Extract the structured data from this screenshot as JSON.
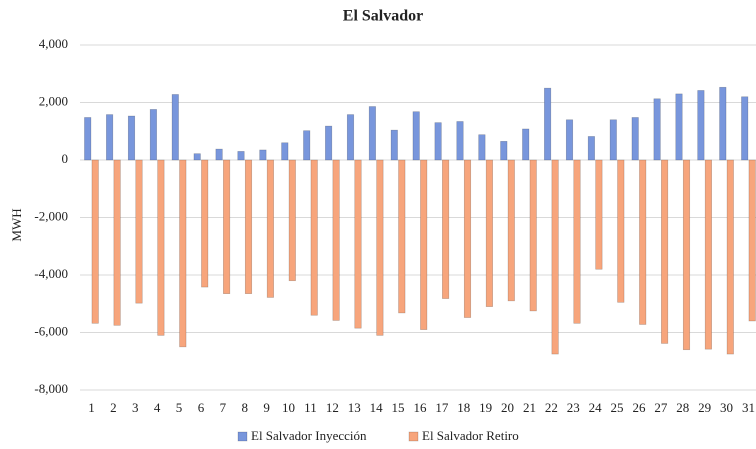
{
  "chart_data": {
    "type": "bar",
    "title": "El Salvador",
    "y_label": "MWH",
    "categories": [
      "1",
      "2",
      "3",
      "4",
      "5",
      "6",
      "7",
      "8",
      "9",
      "10",
      "11",
      "12",
      "13",
      "14",
      "15",
      "16",
      "17",
      "18",
      "19",
      "20",
      "21",
      "22",
      "23",
      "24",
      "25",
      "26",
      "27",
      "28",
      "29",
      "30",
      "31"
    ],
    "series": [
      {
        "name": "El Salvador Inyección",
        "color": "#7896dc",
        "values": [
          1480,
          1580,
          1530,
          1760,
          2280,
          220,
          380,
          300,
          350,
          600,
          1020,
          1180,
          1580,
          1860,
          1040,
          1680,
          1300,
          1340,
          880,
          650,
          1080,
          2500,
          1400,
          820,
          1400,
          1480,
          2130,
          2300,
          2420,
          2530,
          2200
        ]
      },
      {
        "name": "El Salvador Retiro",
        "color": "#f7a57c",
        "values": [
          -5680,
          -5750,
          -4980,
          -6100,
          -6500,
          -4420,
          -4650,
          -4650,
          -4780,
          -4200,
          -5400,
          -5580,
          -5850,
          -6100,
          -5320,
          -5900,
          -4820,
          -5480,
          -5100,
          -4900,
          -5250,
          -6750,
          -5680,
          -3800,
          -4950,
          -5720,
          -6380,
          -6600,
          -6580,
          -6750,
          -5600
        ]
      }
    ],
    "ylim": [
      -8000,
      4000
    ],
    "yticks": [
      {
        "value": -8000,
        "label": "-8,000"
      },
      {
        "value": -6000,
        "label": "-6,000"
      },
      {
        "value": -4000,
        "label": "-4,000"
      },
      {
        "value": -2000,
        "label": "-2,000"
      },
      0,
      {
        "value": 2000,
        "label": "2,000"
      },
      {
        "value": 4000,
        "label": "4,000"
      }
    ],
    "grid": true,
    "legend": "bottom"
  }
}
